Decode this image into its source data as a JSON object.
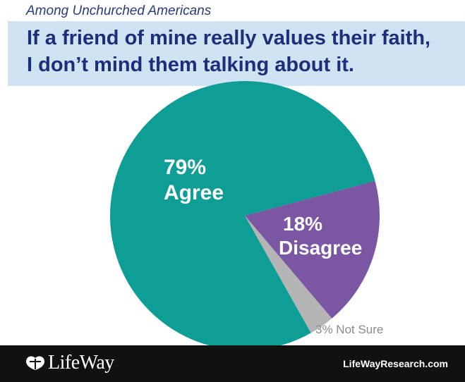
{
  "header": {
    "subtitle": "Among Unchurched Americans",
    "title_line1": "If a friend of mine really values their faith,",
    "title_line2": "I don’t mind them talking about it."
  },
  "chart_data": {
    "type": "pie",
    "slices": [
      {
        "label": "Agree",
        "value": 79,
        "color": "#0f9e95"
      },
      {
        "label": "Disagree",
        "value": 18,
        "color": "#7a56a3"
      },
      {
        "label": "Not Sure",
        "value": 3,
        "color": "#b5b5b5"
      }
    ],
    "slice_labels": [
      {
        "pct": "79%",
        "name": "Agree"
      },
      {
        "pct": "18%",
        "name": "Disagree"
      },
      {
        "text": "3% Not Sure"
      }
    ]
  },
  "footer": {
    "logo_text": "LifeWay",
    "website": "LifeWayResearch.com"
  },
  "colors": {
    "title_band": "#cfe3f2",
    "title_text": "#1c2f7a",
    "footer_bg": "#111111"
  },
  "icons": {
    "logo": "lifeway-logo-icon"
  }
}
